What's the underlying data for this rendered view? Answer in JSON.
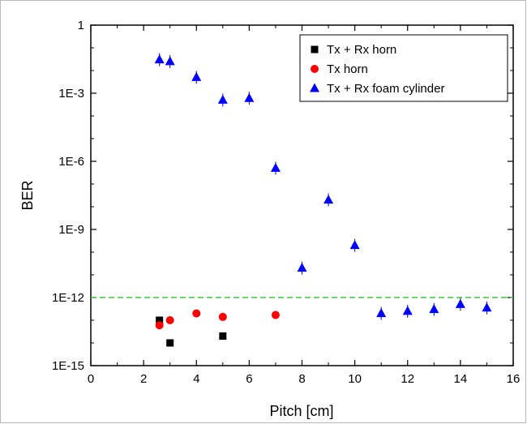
{
  "chart_data": {
    "type": "scatter",
    "title": "",
    "xlabel": "Pitch [cm]",
    "ylabel": "BER",
    "xlim": [
      0,
      16
    ],
    "ylim": [
      1e-15,
      1
    ],
    "yscale": "log",
    "x_ticks": [
      0,
      2,
      4,
      6,
      8,
      10,
      12,
      14,
      16
    ],
    "x_tick_labels": [
      "0",
      "2",
      "4",
      "6",
      "8",
      "10",
      "12",
      "14",
      "16"
    ],
    "y_ticks": [
      1e-15,
      1e-12,
      1e-09,
      1e-06,
      0.001,
      1
    ],
    "y_tick_labels": [
      "1E-15",
      "1E-12",
      "1E-9",
      "1E-6",
      "1E-3",
      "1"
    ],
    "grid": false,
    "legend_position": "top-right",
    "threshold_line": {
      "y": 1e-12,
      "color": "#33cc33",
      "style": "dashed"
    },
    "series": [
      {
        "name": "Tx + Rx horn",
        "marker": "square",
        "color": "#000000",
        "points": [
          [
            2.6,
            1e-13
          ],
          [
            3.0,
            1e-14
          ],
          [
            5.0,
            2e-14
          ]
        ]
      },
      {
        "name": "Tx horn",
        "marker": "circle",
        "color": "#ff0000",
        "points": [
          [
            2.6,
            6e-14
          ],
          [
            3.0,
            1e-13
          ],
          [
            4.0,
            2e-13
          ],
          [
            5.0,
            1.4e-13
          ],
          [
            7.0,
            1.7e-13
          ]
        ]
      },
      {
        "name": "Tx + Rx foam cylinder",
        "marker": "triangle",
        "color": "#0000ff",
        "points": [
          [
            2.6,
            0.03
          ],
          [
            3.0,
            0.025
          ],
          [
            4.0,
            0.005
          ],
          [
            5.0,
            0.0005
          ],
          [
            6.0,
            0.0006
          ],
          [
            7.0,
            5e-07
          ],
          [
            8.0,
            2e-11
          ],
          [
            9.0,
            2e-08
          ],
          [
            10.0,
            2e-10
          ],
          [
            11.0,
            2e-13
          ],
          [
            12.0,
            2.5e-13
          ],
          [
            13.0,
            3e-13
          ],
          [
            14.0,
            5e-13
          ],
          [
            15.0,
            3.5e-13
          ]
        ]
      }
    ]
  }
}
